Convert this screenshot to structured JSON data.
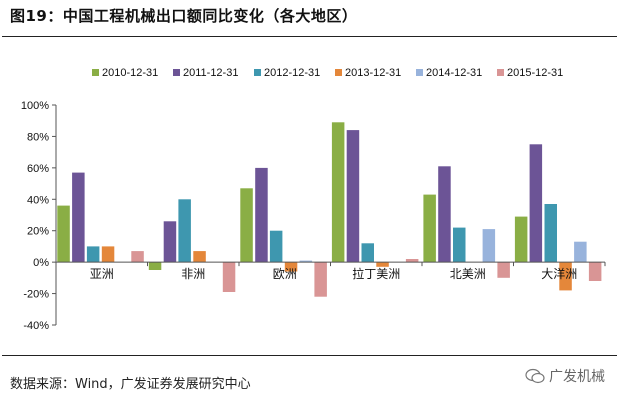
{
  "figure": {
    "title": "图19：中国工程机械出口额同比变化（各大地区）",
    "source": "数据来源：Wind，广发证券发展研究中心",
    "watermark": "广发机械"
  },
  "chart_data": {
    "type": "bar",
    "title": "",
    "xlabel": "",
    "ylabel": "",
    "ylim": [
      -40,
      100
    ],
    "yticks": [
      -40,
      -20,
      0,
      20,
      40,
      60,
      80,
      100
    ],
    "y_unit": "%",
    "grid": false,
    "legend_position": "top",
    "categories": [
      "亚洲",
      "非洲",
      "欧洲",
      "拉丁美洲",
      "北美洲",
      "大洋洲"
    ],
    "series": [
      {
        "name": "2010-12-31",
        "color": "#8AAE45",
        "values": [
          36,
          -5,
          47,
          89,
          43,
          29
        ]
      },
      {
        "name": "2011-12-31",
        "color": "#6C5496",
        "values": [
          57,
          26,
          60,
          84,
          61,
          75
        ]
      },
      {
        "name": "2012-12-31",
        "color": "#3E97AF",
        "values": [
          10,
          40,
          20,
          12,
          22,
          37
        ]
      },
      {
        "name": "2013-12-31",
        "color": "#E4873A",
        "values": [
          10,
          7,
          -6,
          -3,
          null,
          -18
        ]
      },
      {
        "name": "2014-12-31",
        "color": "#98B3DC",
        "values": [
          null,
          null,
          1,
          null,
          21,
          13
        ]
      },
      {
        "name": "2015-12-31",
        "color": "#D99595",
        "values": [
          7,
          -19,
          -22,
          2,
          -10,
          -12
        ]
      }
    ]
  }
}
